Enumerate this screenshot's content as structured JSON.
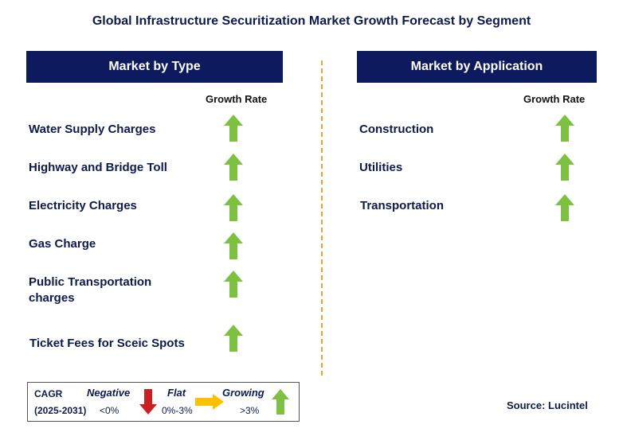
{
  "title": "Global Infrastructure Securitization Market Growth Forecast by Segment",
  "left_panel": {
    "header": "Market by Type",
    "growth_label": "Growth Rate",
    "items": [
      {
        "label": "Water Supply Charges",
        "trend": "growing"
      },
      {
        "label": "Highway and Bridge Toll",
        "trend": "growing"
      },
      {
        "label": "Electricity Charges",
        "trend": "growing"
      },
      {
        "label": "Gas Charge",
        "trend": "growing"
      },
      {
        "label": "Public Transportation charges",
        "trend": "growing"
      },
      {
        "label": "Ticket Fees for Sceic Spots",
        "trend": "growing"
      }
    ]
  },
  "right_panel": {
    "header": "Market by Application",
    "growth_label": "Growth Rate",
    "items": [
      {
        "label": "Construction",
        "trend": "growing"
      },
      {
        "label": "Utilities",
        "trend": "growing"
      },
      {
        "label": "Transportation",
        "trend": "growing"
      }
    ]
  },
  "legend": {
    "cagr_label": "CAGR",
    "period": "(2025-2031)",
    "negative_label": "Negative",
    "negative_range": "<0%",
    "flat_label": "Flat",
    "flat_range": "0%-3%",
    "growing_label": "Growing",
    "growing_range": ">3%"
  },
  "source": "Source: Lucintel",
  "colors": {
    "header_bg": "#0d1b5e",
    "growing_arrow": "#7dc142",
    "negative_arrow": "#cc1f1f",
    "flat_arrow": "#ffc000",
    "divider": "#f0a030"
  }
}
